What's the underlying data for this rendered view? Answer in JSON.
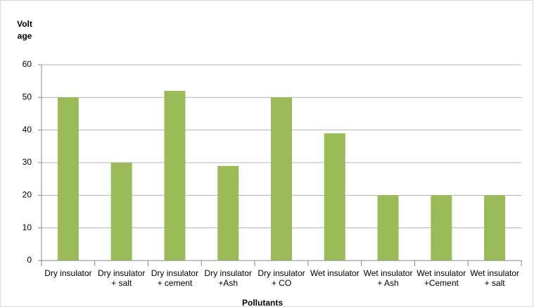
{
  "chart_data": {
    "type": "bar",
    "x_label": "Pollutants",
    "y_label": "Voltage",
    "categories": [
      "Dry insulator",
      "Dry insulator + salt",
      "Dry insulator + cement",
      "Dry insulator +Ash",
      "Dry insulator + CO",
      "Wet insulator",
      "Wet insulator + Ash",
      "Wet insulator +Cement",
      "Wet insulator + salt"
    ],
    "values": [
      50,
      30,
      52,
      29,
      50,
      39,
      20,
      20,
      20
    ],
    "color": "#9bbb59",
    "ylim": [
      0,
      60
    ],
    "yticks": [
      0,
      10,
      20,
      30,
      40,
      50,
      60
    ],
    "grid": true
  }
}
